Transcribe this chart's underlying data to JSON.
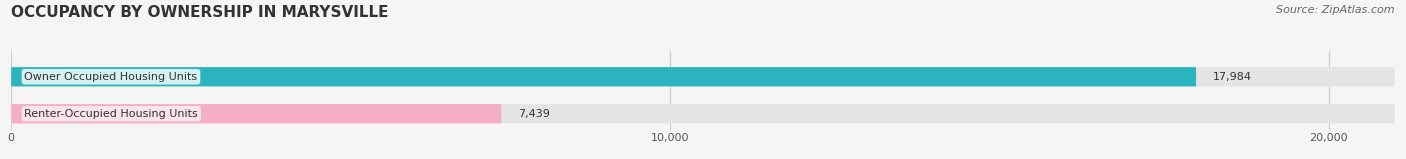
{
  "title": "OCCUPANCY BY OWNERSHIP IN MARYSVILLE",
  "source": "Source: ZipAtlas.com",
  "categories": [
    "Owner Occupied Housing Units",
    "Renter-Occupied Housing Units"
  ],
  "values": [
    17984,
    7439
  ],
  "bar_colors": [
    "#2ab5be",
    "#f4afc5"
  ],
  "label_bg_colors": [
    "#eaf7f8",
    "#fdeaf1"
  ],
  "xlim": [
    0,
    21000
  ],
  "xticks": [
    0,
    10000,
    20000
  ],
  "xtick_labels": [
    "0",
    "10,000",
    "20,000"
  ],
  "background_color": "#f5f5f5",
  "bar_bg_color": "#e4e4e4",
  "title_fontsize": 11,
  "source_fontsize": 8,
  "bar_label_fontsize": 8,
  "value_fontsize": 8
}
